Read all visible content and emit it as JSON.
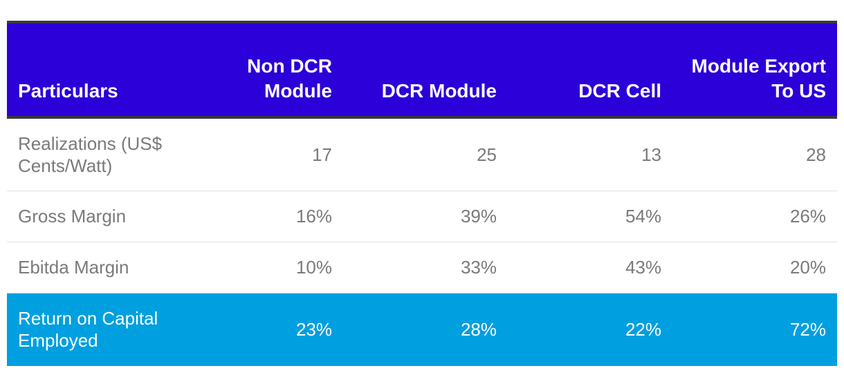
{
  "chart_data": {
    "type": "table",
    "columns": [
      "Particulars",
      "Non DCR Module",
      "DCR Module",
      "DCR Cell",
      "Module Export To US"
    ],
    "rows": [
      [
        "Realizations (US$ Cents/Watt)",
        "17",
        "25",
        "13",
        "28"
      ],
      [
        "Gross Margin",
        "16%",
        "39%",
        "54%",
        "26%"
      ],
      [
        "Ebitda Margin",
        "10%",
        "33%",
        "43%",
        "20%"
      ],
      [
        "Return on Capital Employed",
        "23%",
        "28%",
        "22%",
        "72%"
      ]
    ],
    "highlighted_row": 3
  },
  "colors": {
    "header_bg": "#2b00d9",
    "header_text": "#ffffff",
    "highlight_row_bg": "#009fe0",
    "body_text": "#7a7a7a",
    "row_divider": "#e2e2e2"
  }
}
